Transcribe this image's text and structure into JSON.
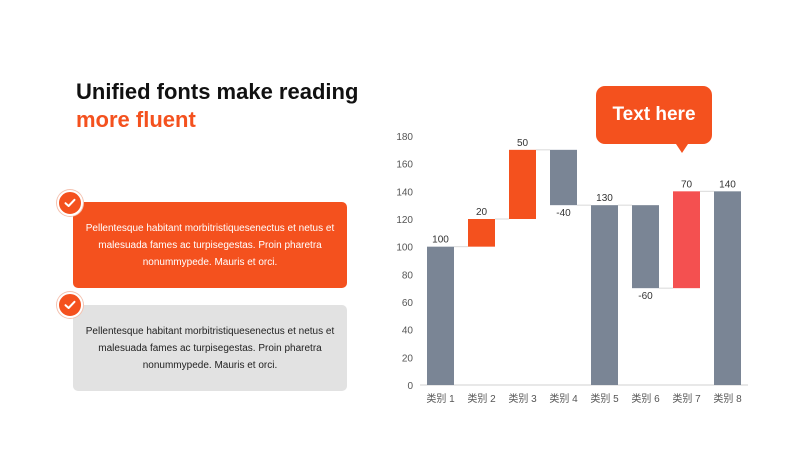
{
  "title": {
    "line1": "Unified fonts make reading",
    "line2": "more fluent"
  },
  "cards": [
    {
      "text": "Pellentesque habitant morbitristiquesenectus et netus et malesuada fames ac turpisegestas. Proin pharetra nonummypede. Mauris et orci."
    },
    {
      "text": "Pellentesque habitant morbitristiquesenectus et netus et malesuada fames ac turpisegestas. Proin pharetra nonummypede. Mauris et orci."
    }
  ],
  "icons": {
    "card_check": "check-icon"
  },
  "callout": {
    "text": "Text here"
  },
  "colors": {
    "accent": "#f4511e",
    "total": "#7a8595",
    "highlight": "#f45050",
    "card_gray": "#e2e2e2"
  },
  "chart_data": {
    "type": "bar",
    "subtype": "waterfall",
    "categories": [
      "类别 1",
      "类别 2",
      "类别 3",
      "类别 4",
      "类别 5",
      "类别 6",
      "类别 7",
      "类别 8"
    ],
    "bars": [
      {
        "low": 0,
        "high": 100,
        "label": "100",
        "kind": "total"
      },
      {
        "low": 100,
        "high": 120,
        "label": "20",
        "kind": "increase"
      },
      {
        "low": 120,
        "high": 170,
        "label": "50",
        "kind": "increase"
      },
      {
        "low": 130,
        "high": 170,
        "label": "-40",
        "kind": "decrease"
      },
      {
        "low": 0,
        "high": 130,
        "label": "130",
        "kind": "total"
      },
      {
        "low": 70,
        "high": 130,
        "label": "-60",
        "kind": "decrease"
      },
      {
        "low": 70,
        "high": 140,
        "label": "70",
        "kind": "highlight"
      },
      {
        "low": 0,
        "high": 140,
        "label": "140",
        "kind": "total"
      }
    ],
    "yticks": [
      0,
      20,
      40,
      60,
      80,
      100,
      120,
      140,
      160,
      180
    ],
    "ylim": [
      0,
      180
    ],
    "grid": false,
    "legend": "none"
  }
}
